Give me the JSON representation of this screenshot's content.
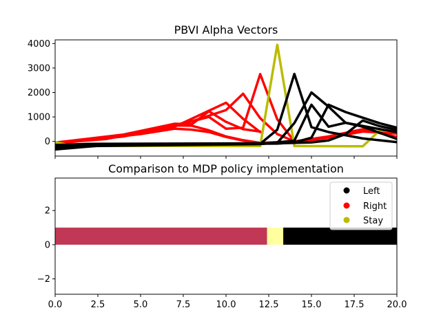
{
  "chart_data": [
    {
      "type": "line",
      "title": "PBVI Alpha Vectors",
      "xlabel": "",
      "ylabel": "",
      "xlim": [
        0,
        20
      ],
      "ylim": [
        -600,
        4150
      ],
      "x_ticks_labeled": false,
      "y_ticks": [
        0,
        1000,
        2000,
        3000,
        4000
      ],
      "grid": false,
      "series": [
        {
          "color": "#ff0000",
          "points": [
            [
              0,
              -50
            ],
            [
              4,
              280
            ],
            [
              7,
              720
            ],
            [
              8,
              700
            ],
            [
              9,
              1230
            ],
            [
              10,
              800
            ],
            [
              11,
              500
            ],
            [
              12,
              400
            ]
          ]
        },
        {
          "color": "#ff0000",
          "points": [
            [
              0,
              -60
            ],
            [
              4,
              220
            ],
            [
              6,
              480
            ],
            [
              7,
              600
            ],
            [
              10,
              1580
            ],
            [
              11,
              920
            ],
            [
              12,
              380
            ]
          ]
        },
        {
          "color": "#ff0000",
          "points": [
            [
              0,
              -70
            ],
            [
              3,
              100
            ],
            [
              5,
              380
            ],
            [
              8,
              820
            ],
            [
              9,
              1000
            ],
            [
              10,
              520
            ],
            [
              11,
              560
            ],
            [
              12,
              2750
            ],
            [
              13,
              900
            ],
            [
              14,
              0
            ]
          ]
        },
        {
          "color": "#ff0000",
          "points": [
            [
              0,
              -80
            ],
            [
              4,
              200
            ],
            [
              6,
              500
            ],
            [
              8,
              820
            ],
            [
              10,
              1280
            ],
            [
              11,
              1950
            ],
            [
              12,
              950
            ],
            [
              13,
              300
            ],
            [
              14,
              0
            ]
          ]
        },
        {
          "color": "#ff0000",
          "points": [
            [
              0,
              -90
            ],
            [
              5,
              300
            ],
            [
              7,
              520
            ],
            [
              8,
              480
            ],
            [
              9,
              380
            ],
            [
              10,
              180
            ],
            [
              11,
              30
            ],
            [
              12,
              -60
            ],
            [
              14,
              0
            ],
            [
              16,
              200
            ],
            [
              18,
              500
            ],
            [
              20,
              180
            ]
          ]
        },
        {
          "color": "#ff0000",
          "points": [
            [
              0,
              -100
            ],
            [
              3,
              140
            ],
            [
              6,
              420
            ],
            [
              7,
              650
            ],
            [
              8,
              640
            ],
            [
              9,
              450
            ],
            [
              10,
              200
            ],
            [
              11,
              50
            ],
            [
              12,
              -60
            ],
            [
              14,
              -50
            ],
            [
              16,
              150
            ],
            [
              18,
              400
            ],
            [
              20,
              320
            ]
          ]
        },
        {
          "color": "#bbbb00",
          "points": [
            [
              0,
              -30
            ],
            [
              1,
              -180
            ],
            [
              12,
              -190
            ],
            [
              13,
              3950
            ],
            [
              14,
              -190
            ],
            [
              18,
              -200
            ],
            [
              19,
              450
            ],
            [
              20,
              400
            ]
          ]
        },
        {
          "color": "#000000",
          "points": [
            [
              0,
              -330
            ],
            [
              3,
              -150
            ],
            [
              6,
              -130
            ],
            [
              12,
              -100
            ],
            [
              13,
              480
            ],
            [
              14,
              2760
            ],
            [
              15,
              580
            ],
            [
              16,
              380
            ],
            [
              18,
              120
            ],
            [
              20,
              -30
            ]
          ]
        },
        {
          "color": "#000000",
          "points": [
            [
              0,
              -300
            ],
            [
              1,
              -200
            ],
            [
              12,
              -110
            ],
            [
              14,
              30
            ],
            [
              15,
              1500
            ],
            [
              16,
              600
            ],
            [
              17,
              760
            ],
            [
              18,
              600
            ],
            [
              20,
              100
            ]
          ]
        },
        {
          "color": "#000000",
          "points": [
            [
              0,
              -250
            ],
            [
              1,
              -150
            ],
            [
              12,
              -100
            ],
            [
              13,
              -60
            ],
            [
              14,
              750
            ],
            [
              15,
              2000
            ],
            [
              16,
              1420
            ],
            [
              17,
              760
            ],
            [
              19,
              500
            ],
            [
              20,
              380
            ]
          ]
        },
        {
          "color": "#000000",
          "points": [
            [
              0,
              -200
            ],
            [
              4,
              -120
            ],
            [
              13,
              -90
            ],
            [
              14,
              -40
            ],
            [
              15,
              150
            ],
            [
              16,
              1500
            ],
            [
              17,
              1200
            ],
            [
              19,
              740
            ],
            [
              20,
              560
            ]
          ]
        },
        {
          "color": "#000000",
          "points": [
            [
              0,
              -150
            ],
            [
              2,
              -100
            ],
            [
              13,
              -80
            ],
            [
              15,
              -40
            ],
            [
              16,
              40
            ],
            [
              17,
              300
            ],
            [
              18,
              850
            ],
            [
              19,
              620
            ],
            [
              20,
              470
            ]
          ]
        }
      ]
    },
    {
      "type": "bar",
      "orientation": "horizontal",
      "title": "Comparison to MDP policy implementation",
      "xlabel": "",
      "ylabel": "",
      "xlim": [
        0,
        20
      ],
      "ylim": [
        -2.9,
        3.9
      ],
      "x_ticks": [
        0.0,
        2.5,
        5.0,
        7.5,
        10.0,
        12.5,
        15.0,
        17.5,
        20.0
      ],
      "x_tick_labels": [
        "0.0",
        "2.5",
        "5.0",
        "7.5",
        "10.0",
        "12.5",
        "15.0",
        "17.5",
        "20.0"
      ],
      "y_ticks": [
        -2,
        0,
        2
      ],
      "y_tick_labels": [
        "−2",
        "0",
        "2"
      ],
      "grid": false,
      "segments": [
        {
          "start": 0,
          "end": 12.4,
          "y0": 0,
          "y1": 1,
          "color": "#c03855"
        },
        {
          "start": 12.4,
          "end": 13.35,
          "y0": 0,
          "y1": 1,
          "color": "#ffffa0"
        },
        {
          "start": 13.35,
          "end": 20,
          "y0": 0,
          "y1": 1,
          "color": "#000000"
        }
      ],
      "legend": {
        "position": "top-right",
        "entries": [
          {
            "label": "Left",
            "color": "#000000"
          },
          {
            "label": "Right",
            "color": "#ff0000"
          },
          {
            "label": "Stay",
            "color": "#bbbb00"
          }
        ]
      }
    }
  ]
}
